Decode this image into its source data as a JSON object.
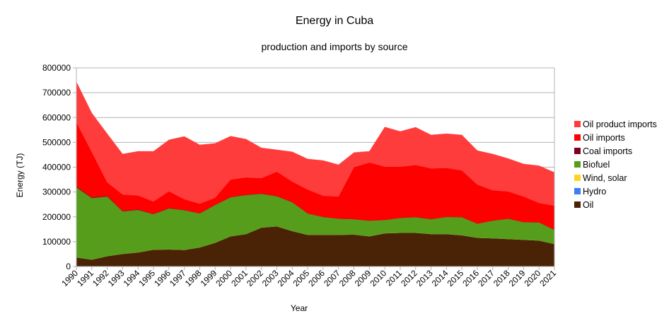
{
  "chart_data": {
    "type": "area",
    "stacked": true,
    "title": "Energy in Cuba",
    "subtitle": "production and imports by source",
    "xlabel": "Year",
    "ylabel": "Energy (TJ)",
    "ylim": [
      0,
      800000
    ],
    "yticks": [
      0,
      100000,
      200000,
      300000,
      400000,
      500000,
      600000,
      700000,
      800000
    ],
    "ytick_labels": [
      "0",
      "100000",
      "200000",
      "300000",
      "400000",
      "500000",
      "600000",
      "700000",
      "800000"
    ],
    "grid": true,
    "legend_position": "right",
    "x": [
      "1990",
      "1991",
      "1992",
      "1993",
      "1994",
      "1995",
      "1996",
      "1997",
      "1998",
      "1999",
      "2000",
      "2001",
      "2002",
      "2003",
      "2004",
      "2005",
      "2006",
      "2007",
      "2008",
      "2009",
      "2010",
      "2011",
      "2012",
      "2013",
      "2014",
      "2015",
      "2016",
      "2017",
      "2018",
      "2019",
      "2020",
      "2021"
    ],
    "series": [
      {
        "name": "Oil",
        "color": "#4a2306",
        "values": [
          37000,
          28000,
          42000,
          51000,
          57000,
          68000,
          69000,
          67000,
          77000,
          96000,
          122000,
          131000,
          157000,
          162000,
          143000,
          128000,
          128000,
          128000,
          129000,
          122000,
          134000,
          136000,
          136000,
          131000,
          131000,
          126000,
          116000,
          114000,
          111000,
          108000,
          105000,
          91000
        ]
      },
      {
        "name": "Hydro",
        "color": "#3c7df0",
        "values": [
          0,
          0,
          0,
          0,
          0,
          0,
          0,
          0,
          0,
          0,
          0,
          0,
          0,
          0,
          0,
          0,
          0,
          0,
          0,
          0,
          0,
          0,
          0,
          0,
          0,
          0,
          0,
          0,
          0,
          0,
          0,
          0
        ]
      },
      {
        "name": "Wind, solar",
        "color": "#ffd320",
        "values": [
          0,
          0,
          0,
          0,
          0,
          0,
          0,
          0,
          0,
          0,
          0,
          0,
          0,
          0,
          0,
          0,
          0,
          0,
          0,
          0,
          0,
          0,
          0,
          0,
          0,
          0,
          0,
          0,
          0,
          0,
          0,
          0
        ]
      },
      {
        "name": "Biofuel",
        "color": "#579d1c",
        "values": [
          282000,
          248000,
          240000,
          171000,
          171000,
          143000,
          165000,
          160000,
          137000,
          152000,
          157000,
          157000,
          136000,
          121000,
          116000,
          86000,
          72000,
          65000,
          62000,
          63000,
          54000,
          60000,
          63000,
          60000,
          69000,
          73000,
          57000,
          71000,
          82000,
          71000,
          73000,
          57000
        ]
      },
      {
        "name": "Coal imports",
        "color": "#7e0021",
        "values": [
          3000,
          3000,
          2000,
          2000,
          2000,
          1000,
          1000,
          1000,
          1000,
          1000,
          1000,
          1000,
          1000,
          1000,
          0,
          0,
          0,
          0,
          0,
          0,
          0,
          0,
          0,
          0,
          0,
          0,
          0,
          0,
          0,
          0,
          0,
          0
        ]
      },
      {
        "name": "Oil imports",
        "color": "#ff0000",
        "values": [
          259000,
          182000,
          55000,
          66000,
          56000,
          50000,
          68000,
          43000,
          38000,
          28000,
          70000,
          70000,
          62000,
          98000,
          83000,
          96000,
          85000,
          89000,
          209000,
          234000,
          214000,
          206000,
          210000,
          204000,
          197000,
          188000,
          157000,
          122000,
          109000,
          103000,
          78000,
          97000
        ]
      },
      {
        "name": "Oil product imports",
        "color": "#ff3c3c",
        "values": [
          163000,
          157000,
          196000,
          163000,
          178000,
          202000,
          207000,
          253000,
          237000,
          219000,
          175000,
          154000,
          122000,
          88000,
          120000,
          123000,
          142000,
          128000,
          59000,
          45000,
          160000,
          142000,
          152000,
          135000,
          138000,
          143000,
          137000,
          146000,
          133000,
          131000,
          150000,
          134000
        ]
      }
    ],
    "legend_order": [
      "Oil product imports",
      "Oil imports",
      "Coal imports",
      "Biofuel",
      "Wind, solar",
      "Hydro",
      "Oil"
    ]
  }
}
